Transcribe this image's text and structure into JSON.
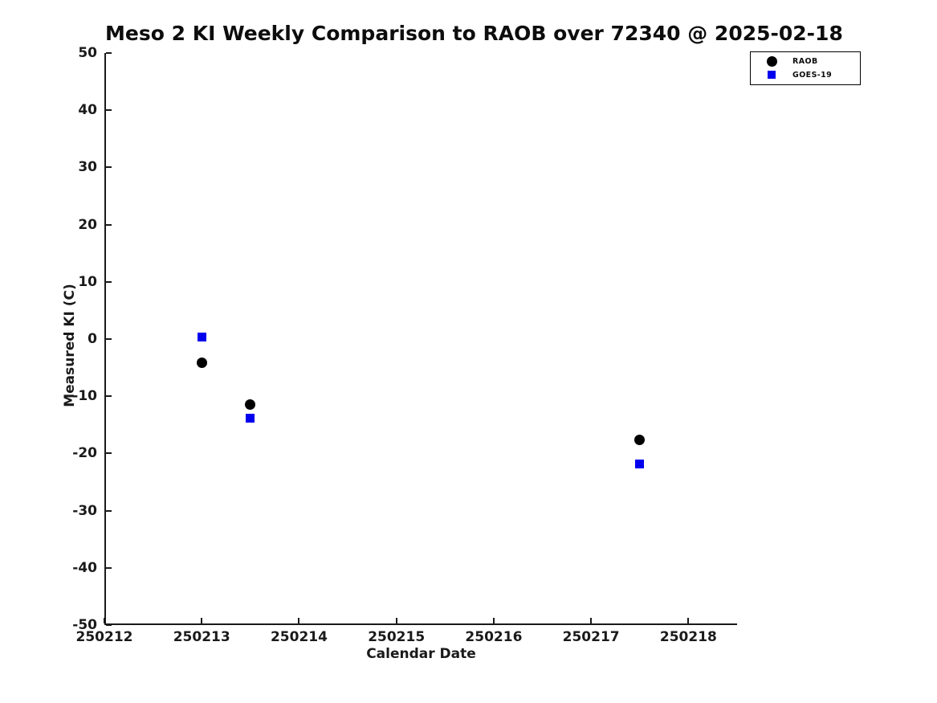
{
  "chart_data": {
    "type": "scatter",
    "title": "Meso 2 KI Weekly Comparison to RAOB over 72340 @ 2025-02-18",
    "xlabel": "Calendar Date",
    "ylabel": "Measured KI (C)",
    "xlim": [
      250212,
      250218.5
    ],
    "ylim": [
      -50,
      50
    ],
    "xticks": [
      250212,
      250213,
      250214,
      250215,
      250216,
      250217,
      250218
    ],
    "yticks": [
      50,
      40,
      30,
      20,
      10,
      0,
      -10,
      -20,
      -30,
      -40,
      -50
    ],
    "grid": false,
    "legend_position": "outside-top-right",
    "background_color": "#ffffff",
    "axis_color": "#1a1a1a",
    "series": [
      {
        "name": "RAOB",
        "marker": "circle",
        "color": "#000000",
        "points": [
          {
            "x": 250213.0,
            "y": -4.2
          },
          {
            "x": 250213.5,
            "y": -11.4
          },
          {
            "x": 250217.5,
            "y": -17.6
          }
        ]
      },
      {
        "name": "GOES-19",
        "marker": "square",
        "color": "#0000ee",
        "points": [
          {
            "x": 250213.0,
            "y": 0.4
          },
          {
            "x": 250213.5,
            "y": -13.8
          },
          {
            "x": 250217.5,
            "y": -21.8
          }
        ]
      }
    ]
  }
}
